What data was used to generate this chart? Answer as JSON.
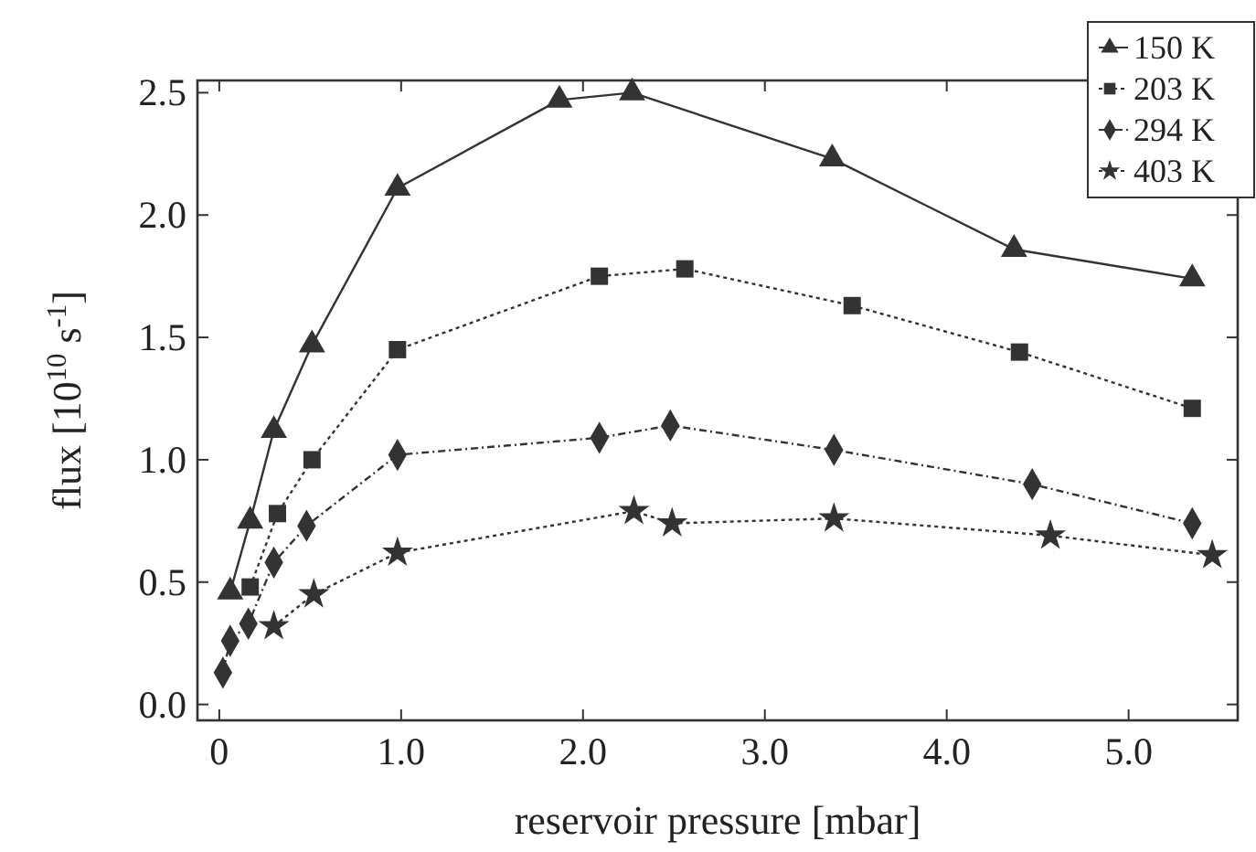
{
  "chart_data": {
    "type": "line",
    "xlabel": "reservoir pressure [mbar]",
    "ylabel": "flux [10$^{10}$ s$^{-1}$]",
    "xlim": [
      -0.12,
      5.6
    ],
    "ylim": [
      -0.065,
      2.55
    ],
    "xticks": [
      0,
      {
        "value": 1,
        "label": "1.0"
      },
      {
        "value": 2,
        "label": "2.0"
      },
      {
        "value": 3,
        "label": "3.0"
      },
      {
        "value": 4,
        "label": "4.0"
      },
      {
        "value": 5,
        "label": "5.0"
      }
    ],
    "yticks": [
      {
        "value": 0,
        "label": "0.0"
      },
      0.5,
      {
        "value": 1,
        "label": "1.0"
      },
      1.5,
      {
        "value": 2,
        "label": "2.0"
      },
      2.5
    ],
    "legend": "top right",
    "grid": false,
    "series": [
      {
        "name": "150 K",
        "color": "#333333",
        "marker": "triangle",
        "line_style": "solid",
        "x": [
          0.06,
          0.17,
          0.3,
          0.51,
          0.98,
          1.87,
          2.27,
          3.37,
          4.37,
          5.35
        ],
        "values": [
          0.46,
          0.75,
          1.12,
          1.47,
          2.11,
          2.47,
          2.5,
          2.23,
          1.86,
          1.74
        ]
      },
      {
        "name": "203 K",
        "color": "#333333",
        "marker": "square",
        "line_style": "dotted",
        "x": [
          0.17,
          0.32,
          0.51,
          0.98,
          2.09,
          2.56,
          3.48,
          4.4,
          5.35
        ],
        "values": [
          0.48,
          0.78,
          1.0,
          1.45,
          1.75,
          1.78,
          1.63,
          1.44,
          1.21
        ]
      },
      {
        "name": "294 K",
        "color": "#333333",
        "marker": "diamond",
        "line_style": "dashed",
        "x": [
          0.02,
          0.06,
          0.16,
          0.3,
          0.48,
          0.98,
          2.09,
          2.48,
          3.38,
          4.47,
          5.35
        ],
        "values": [
          0.13,
          0.26,
          0.33,
          0.58,
          0.73,
          1.02,
          1.09,
          1.14,
          1.04,
          0.9,
          0.74
        ]
      },
      {
        "name": "403 K",
        "color": "#333333",
        "marker": "star",
        "line_style": "dotted",
        "x": [
          0.3,
          0.52,
          0.98,
          2.28,
          2.49,
          3.38,
          4.57,
          5.46
        ],
        "values": [
          0.32,
          0.45,
          0.62,
          0.79,
          0.74,
          0.76,
          0.69,
          0.61
        ]
      }
    ]
  }
}
